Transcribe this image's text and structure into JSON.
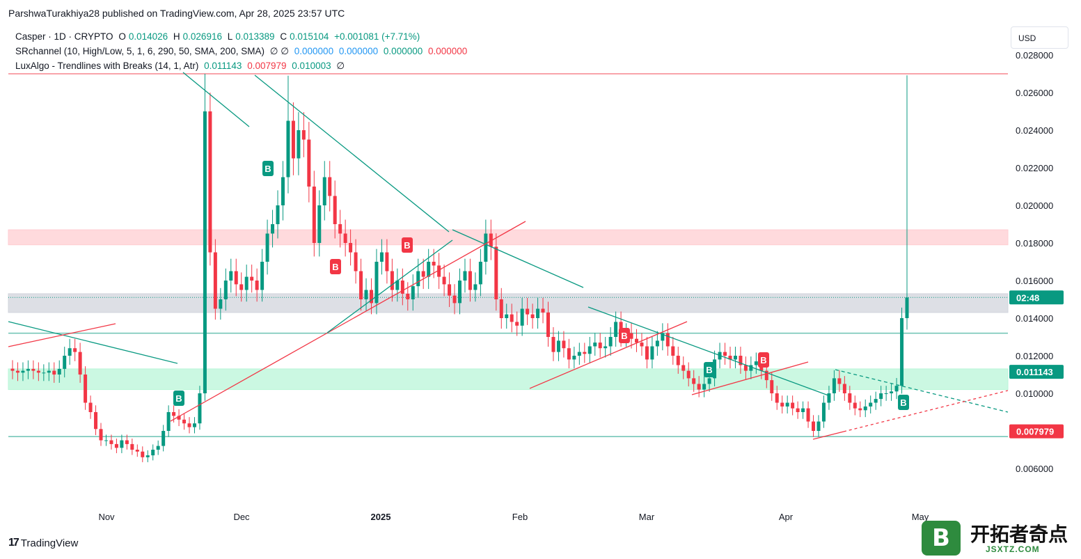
{
  "header": {
    "published_by": "ParshwaTurakhiya28 published on TradingView.com, Apr 28, 2025 23:57 UTC"
  },
  "legend": {
    "symbol": "Casper · 1D · CRYPTO",
    "ohlc": [
      {
        "label": "O",
        "value": "0.014026"
      },
      {
        "label": "H",
        "value": "0.026916"
      },
      {
        "label": "L",
        "value": "0.013389"
      },
      {
        "label": "C",
        "value": "0.015104"
      }
    ],
    "change": "+0.001081 (+7.71%)",
    "indicator1_name": "SRchannel (10, High/Low, 5, 1, 6, 290, 50, SMA, 200, SMA)",
    "indicator1_symbols": "∅ ∅",
    "indicator1_values": [
      {
        "value": "0.000000",
        "color": "#2196f3"
      },
      {
        "value": "0.000000",
        "color": "#2196f3"
      },
      {
        "value": "0.000000",
        "color": "#089981"
      },
      {
        "value": "0.000000",
        "color": "#f23645"
      }
    ],
    "indicator2_name": "LuxAlgo - Trendlines with Breaks (14, 1, Atr)",
    "indicator2_values": [
      {
        "value": "0.011143",
        "color": "#089981"
      },
      {
        "value": "0.007979",
        "color": "#f23645"
      },
      {
        "value": "0.010003",
        "color": "#089981"
      }
    ],
    "indicator2_symbol": "∅"
  },
  "currency_button": "USD",
  "footer": {
    "brand": "TradingView",
    "watermark_cn": "开拓者奇点",
    "watermark_url": "JSXTZ.COM",
    "watermark_letter": "B"
  },
  "colors": {
    "up": "#089981",
    "down": "#f23645",
    "support_zone": "#b9f6d8",
    "resistance_zone": "#ffcdd2",
    "neutral_zone": "#d1d4dc"
  },
  "chart_data": {
    "type": "candlestick",
    "x_axis_labels": [
      "Nov",
      "Dec",
      "2025",
      "Feb",
      "Mar",
      "Apr",
      "May"
    ],
    "y_axis_labels": [
      "0.028000",
      "0.026000",
      "0.024000",
      "0.022000",
      "0.020000",
      "0.018000",
      "0.016000",
      "0.014000",
      "0.012000",
      "0.010000",
      "0.008000",
      "0.006000"
    ],
    "ylim": [
      0.0045,
      0.0285
    ],
    "price_tags": [
      {
        "label": "02:48",
        "value": 0.0151,
        "color": "#089981"
      },
      {
        "label": "0.011143",
        "value": 0.011143,
        "color": "#089981"
      },
      {
        "label": "0.007979",
        "value": 0.007979,
        "color": "#f23645"
      }
    ],
    "zones": [
      {
        "low": 0.0179,
        "high": 0.0187,
        "color": "#ffcdd2"
      },
      {
        "low": 0.0143,
        "high": 0.0153,
        "color": "#d1d4dc"
      },
      {
        "low": 0.0102,
        "high": 0.0113,
        "color": "#b9f6d8"
      }
    ],
    "levels": [
      {
        "value": 0.027,
        "color": "#f23645"
      },
      {
        "value": 0.0132,
        "color": "#089981"
      },
      {
        "value": 0.0077,
        "color": "#089981"
      }
    ],
    "last_close": 0.015104,
    "closes": [
      0.0112,
      0.0111,
      0.0112,
      0.0113,
      0.0112,
      0.0111,
      0.0111,
      0.0112,
      0.011,
      0.0113,
      0.012,
      0.0124,
      0.0122,
      0.011,
      0.0095,
      0.009,
      0.0081,
      0.0075,
      0.0075,
      0.0073,
      0.0071,
      0.0075,
      0.0073,
      0.007,
      0.0069,
      0.0066,
      0.0067,
      0.007,
      0.0072,
      0.008,
      0.009,
      0.0088,
      0.0086,
      0.0084,
      0.0082,
      0.0084,
      0.01,
      0.025,
      0.0175,
      0.0145,
      0.015,
      0.016,
      0.0165,
      0.0158,
      0.0155,
      0.0162,
      0.016,
      0.0155,
      0.017,
      0.0185,
      0.019,
      0.02,
      0.0215,
      0.0245,
      0.0225,
      0.024,
      0.0235,
      0.021,
      0.018,
      0.02,
      0.0215,
      0.0205,
      0.019,
      0.0185,
      0.018,
      0.0175,
      0.0165,
      0.015,
      0.0155,
      0.0148,
      0.017,
      0.0175,
      0.0165,
      0.0155,
      0.016,
      0.0153,
      0.015,
      0.0157,
      0.0165,
      0.0162,
      0.017,
      0.0168,
      0.0162,
      0.0158,
      0.0152,
      0.0148,
      0.016,
      0.0165,
      0.0155,
      0.0158,
      0.017,
      0.0185,
      0.0178,
      0.015,
      0.014,
      0.0142,
      0.0138,
      0.0136,
      0.0145,
      0.0142,
      0.014,
      0.0145,
      0.0143,
      0.013,
      0.0122,
      0.0128,
      0.0124,
      0.0118,
      0.012,
      0.0122,
      0.0121,
      0.0125,
      0.0127,
      0.0124,
      0.0125,
      0.013,
      0.0138,
      0.013,
      0.0132,
      0.0129,
      0.0127,
      0.0125,
      0.0118,
      0.0125,
      0.0128,
      0.0132,
      0.0125,
      0.012,
      0.0115,
      0.0112,
      0.0108,
      0.0105,
      0.0102,
      0.0105,
      0.0108,
      0.0118,
      0.0122,
      0.012,
      0.0118,
      0.012,
      0.0115,
      0.0112,
      0.0115,
      0.0117,
      0.0112,
      0.0107,
      0.01,
      0.0095,
      0.0093,
      0.0095,
      0.0092,
      0.009,
      0.0092,
      0.0085,
      0.008,
      0.0085,
      0.0095,
      0.01,
      0.0108,
      0.0105,
      0.01,
      0.0095,
      0.0092,
      0.0091,
      0.0093,
      0.0095,
      0.0097,
      0.01,
      0.01,
      0.0101,
      0.0104,
      0.014,
      0.0151
    ]
  }
}
